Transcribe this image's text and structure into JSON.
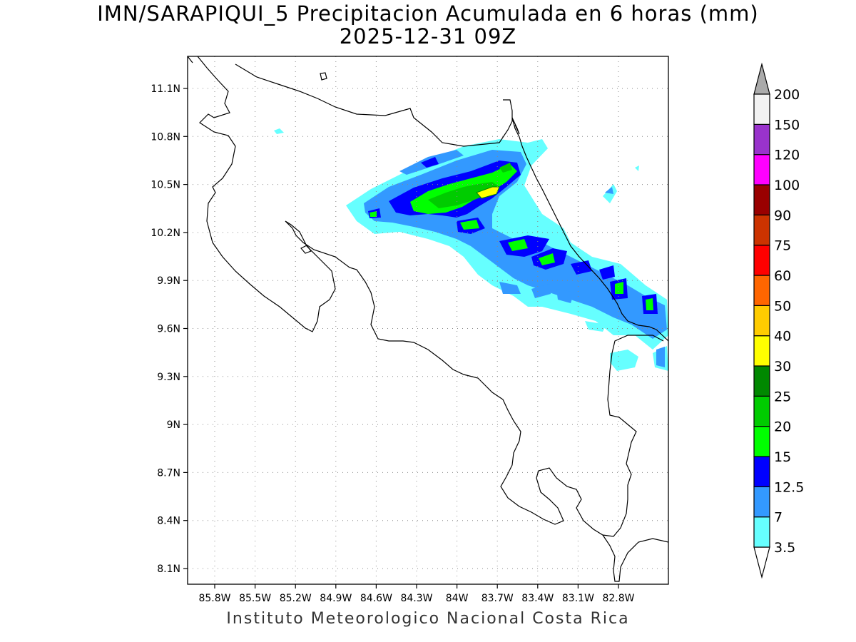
{
  "title": {
    "line1": "IMN/SARAPIQUI_5 Precipitacion Acumulada en 6 horas (mm)",
    "line2": "2025-12-31 09Z"
  },
  "footer": "Instituto Meteorologico Nacional Costa Rica",
  "map": {
    "lon_range": [
      -86.05,
      -82.55
    ],
    "lat_range": [
      8.0,
      11.2
    ],
    "x_ticks": [
      "85.8W",
      "85.5W",
      "85.2W",
      "84.9W",
      "84.6W",
      "84.3W",
      "84W",
      "83.7W",
      "83.4W",
      "83.1W",
      "82.8W"
    ],
    "y_ticks": [
      "11.1N",
      "10.8N",
      "10.5N",
      "10.2N",
      "9.9N",
      "9.6N",
      "9.3N",
      "9N",
      "8.7N",
      "8.4N",
      "8.1N"
    ],
    "grid": true,
    "grid_style": "dotted",
    "coastline_color": "#000000"
  },
  "colorbar": {
    "extend": "both",
    "labels": [
      "3.5",
      "7",
      "12.5",
      "15",
      "20",
      "25",
      "30",
      "40",
      "50",
      "60",
      "75",
      "90",
      "100",
      "120",
      "150",
      "200"
    ],
    "colors": [
      "#66ffff",
      "#3399ff",
      "#0000ff",
      "#00ff00",
      "#00cc00",
      "#008800",
      "#ffff00",
      "#ffcc00",
      "#ff6600",
      "#ff0000",
      "#cc3300",
      "#990000",
      "#ff00ff",
      "#9933cc",
      "#f2f2f2"
    ],
    "over_color": "#aaaaaa",
    "under_color": "#ffffff"
  }
}
